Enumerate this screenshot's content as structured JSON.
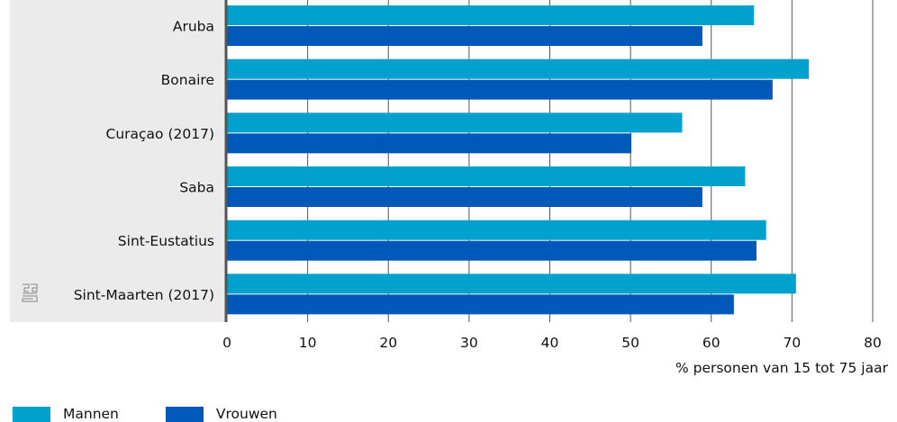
{
  "chart_data": {
    "type": "bar",
    "orientation": "horizontal",
    "categories": [
      "Aruba",
      "Bonaire",
      "Curaçao (2017)",
      "Saba",
      "Sint-Eustatius",
      "Sint-Maarten (2017)"
    ],
    "series": [
      {
        "name": "Mannen",
        "color": "#00a1cd",
        "values": [
          65.3,
          72.1,
          56.4,
          64.2,
          66.8,
          70.5
        ]
      },
      {
        "name": "Vrouwen",
        "color": "#0058b8",
        "values": [
          58.9,
          67.6,
          50.1,
          58.9,
          65.6,
          62.8
        ]
      }
    ],
    "xlabel": "% personen van 15 tot 75 jaar",
    "xlim": [
      0,
      80
    ],
    "xticks": [
      0,
      10,
      20,
      30,
      40,
      50,
      60,
      70,
      80
    ],
    "grid": true,
    "legend_position": "bottom-left"
  },
  "logo": {
    "icon": "cbs-logo-icon"
  }
}
